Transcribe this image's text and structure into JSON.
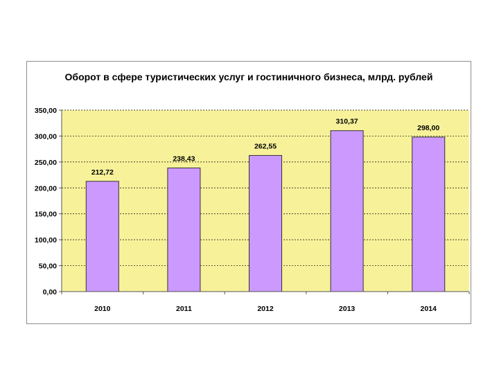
{
  "chart_data": {
    "type": "bar",
    "title": "Оборот в сфере туристических услуг и гостиничного бизнеса, млрд. рублей",
    "categories": [
      "2010",
      "2011",
      "2012",
      "2013",
      "2014"
    ],
    "values": [
      212.72,
      238.43,
      262.55,
      310.37,
      298.0
    ],
    "value_labels": [
      "212,72",
      "238,43",
      "262,55",
      "310,37",
      "298,00"
    ],
    "y_ticks": [
      0,
      50,
      100,
      150,
      200,
      250,
      300,
      350
    ],
    "y_tick_labels": [
      "0,00",
      "50,00",
      "100,00",
      "150,00",
      "200,00",
      "250,00",
      "300,00",
      "350,00"
    ],
    "ylim": [
      0,
      350
    ],
    "xlabel": "",
    "ylabel": "",
    "grid": true,
    "legend": "none",
    "colors": {
      "plot_background": "#f7f29a",
      "bar_fill": "#cc99ff",
      "bar_stroke": "#333333",
      "gridline": "#000000"
    }
  }
}
